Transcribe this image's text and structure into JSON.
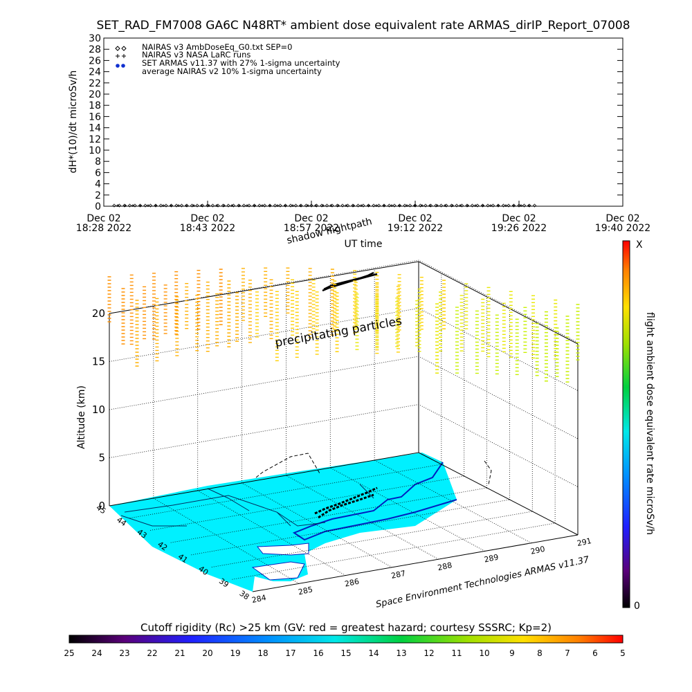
{
  "page": {
    "title": "SET_RAD_FM7008  GA6C N48RT* ambient dose equivalent rate ARMAS_dirIP_Report_07008"
  },
  "chart_data": [
    {
      "type": "scatter",
      "ylabel": "dH*(10)/dt microSv/h",
      "xlabel": "UT time",
      "ylim": [
        0,
        30
      ],
      "y_ticks": [
        "0",
        "2",
        "4",
        "6",
        "8",
        "10",
        "12",
        "14",
        "16",
        "18",
        "20",
        "22",
        "24",
        "26",
        "28",
        "30"
      ],
      "x_ticks": [
        {
          "date": "Dec 02",
          "time": "18:28 2022"
        },
        {
          "date": "Dec 02",
          "time": "18:43 2022"
        },
        {
          "date": "Dec 02",
          "time": "18:57 2022"
        },
        {
          "date": "Dec 02",
          "time": "19:12 2022"
        },
        {
          "date": "Dec 02",
          "time": "19:26 2022"
        },
        {
          "date": "Dec 02",
          "time": "19:40 2022"
        }
      ],
      "legend_position": "top-left",
      "series": [
        {
          "name": "NAIRAS v3 AmbDoseEq_G0.txt SEP=0",
          "marker": "diamond",
          "values_approx": 0.0
        },
        {
          "name": "NAIRAS v3 NASA LaRC runs",
          "marker": "plus",
          "values_approx": 0.0
        },
        {
          "name": "SET ARMAS v11.37 with 27% 1-sigma uncertainty",
          "marker": "filled-circle",
          "color": "#1030d0"
        },
        {
          "name": "average NAIRAS v2 10% 1-sigma uncertainty",
          "marker": "none"
        }
      ]
    },
    {
      "type": "3d-scatter",
      "zlabel": "Altitude (km)",
      "z_ticks": [
        "0",
        "5",
        "10",
        "15",
        "20"
      ],
      "lon_ticks": [
        "284",
        "285",
        "286",
        "287",
        "288",
        "289",
        "290",
        "291"
      ],
      "lat_ticks": [
        "38",
        "39",
        "40",
        "41",
        "42",
        "43",
        "44",
        "45"
      ],
      "annotations": [
        "shadow flightpath",
        "precipitating particles"
      ],
      "credit": "Space Environment Technologies ARMAS v11.37",
      "colorbar": {
        "label": "flight ambient dose equivalent rate microSv/h",
        "top": "X",
        "bottom": "0"
      }
    }
  ],
  "cutoff": {
    "label": "Cutoff rigidity (Rc) >25 km (GV: red = greatest hazard; courtesy SSSRC; Kp=2)",
    "ticks": [
      "25",
      "24",
      "23",
      "22",
      "21",
      "20",
      "19",
      "18",
      "17",
      "16",
      "15",
      "14",
      "13",
      "12",
      "11",
      "10",
      "9",
      "8",
      "7",
      "6",
      "5"
    ]
  },
  "colors": {
    "map_fill": "#00f0ff",
    "flightpath": "#000000",
    "armas_marker": "#1030d0"
  }
}
